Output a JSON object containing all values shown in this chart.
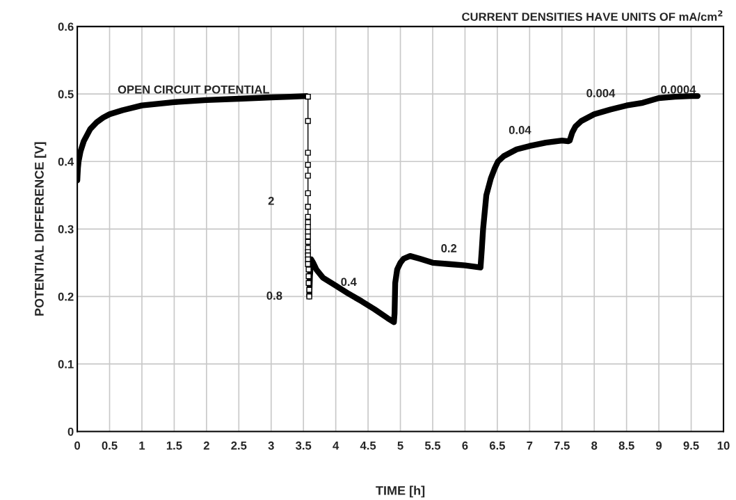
{
  "chart_data": {
    "type": "line",
    "title": "CURRENT DENSITIES HAVE UNITS OF mA/cm$^{2}$",
    "xlabel": "TIME [h]",
    "ylabel": "POTENTIAL DIFFERENCE [V]",
    "xlim": [
      0,
      10
    ],
    "xticks": [
      0,
      0.5,
      1,
      1.5,
      2,
      2.5,
      3,
      3.5,
      4,
      4.5,
      5,
      5.5,
      6,
      6.5,
      7,
      7.5,
      8,
      8.5,
      9,
      9.5,
      10
    ],
    "ylim": [
      0,
      0.6
    ],
    "yticks": [
      0,
      0.1,
      0.2,
      0.3,
      0.4,
      0.5,
      0.6
    ],
    "grid": true,
    "legend": false,
    "series": [
      {
        "color": "#000000",
        "marker": "none",
        "x": [
          0,
          0.01,
          0.02,
          0.05,
          0.1,
          0.2,
          0.3,
          0.4,
          0.5,
          0.7,
          1.0,
          1.5,
          2.0,
          2.5,
          3.0,
          3.3,
          3.55
        ],
        "values": [
          0.372,
          0.39,
          0.4,
          0.415,
          0.43,
          0.448,
          0.458,
          0.465,
          0.47,
          0.476,
          0.483,
          0.488,
          0.491,
          0.493,
          0.495,
          0.496,
          0.497
        ]
      },
      {
        "color": "#000000",
        "marker": "square",
        "x": [
          3.57,
          3.57,
          3.57,
          3.57,
          3.57,
          3.57,
          3.57,
          3.57,
          3.57,
          3.57,
          3.57,
          3.57,
          3.57,
          3.57,
          3.57,
          3.57,
          3.57,
          3.57,
          3.58,
          3.58,
          3.58,
          3.59,
          3.59
        ],
        "values": [
          0.496,
          0.46,
          0.413,
          0.395,
          0.379,
          0.353,
          0.333,
          0.318,
          0.31,
          0.303,
          0.296,
          0.289,
          0.281,
          0.272,
          0.266,
          0.261,
          0.255,
          0.248,
          0.24,
          0.23,
          0.22,
          0.21,
          0.2
        ]
      },
      {
        "color": "#000000",
        "marker": "none",
        "x": [
          3.59,
          3.6,
          3.62,
          3.65,
          3.7,
          3.8,
          3.9,
          4.0,
          4.2,
          4.4,
          4.6,
          4.8,
          4.9,
          4.91,
          4.92,
          4.95,
          5.0,
          5.05,
          5.15,
          5.3,
          5.5,
          5.75,
          6.0,
          6.24,
          6.26,
          6.28,
          6.33,
          6.4,
          6.46,
          6.51,
          6.6,
          6.8,
          7.0,
          7.25,
          7.5,
          7.6,
          7.62,
          7.66,
          7.71,
          7.8,
          8.0,
          8.25,
          8.5,
          8.75,
          9.0,
          9.25,
          9.5,
          9.6
        ],
        "values": [
          0.2,
          0.23,
          0.255,
          0.25,
          0.24,
          0.228,
          0.222,
          0.216,
          0.204,
          0.193,
          0.181,
          0.168,
          0.162,
          0.175,
          0.22,
          0.24,
          0.25,
          0.256,
          0.26,
          0.256,
          0.25,
          0.248,
          0.246,
          0.243,
          0.27,
          0.3,
          0.35,
          0.375,
          0.39,
          0.4,
          0.408,
          0.418,
          0.423,
          0.428,
          0.431,
          0.43,
          0.431,
          0.443,
          0.452,
          0.46,
          0.47,
          0.477,
          0.483,
          0.487,
          0.494,
          0.496,
          0.497,
          0.497
        ]
      }
    ],
    "annotations": [
      "OPEN CIRCUIT POTENTIAL",
      "2",
      "0.8",
      "0.4",
      "0.2",
      "0.04",
      "0.004",
      "0.0004"
    ]
  }
}
